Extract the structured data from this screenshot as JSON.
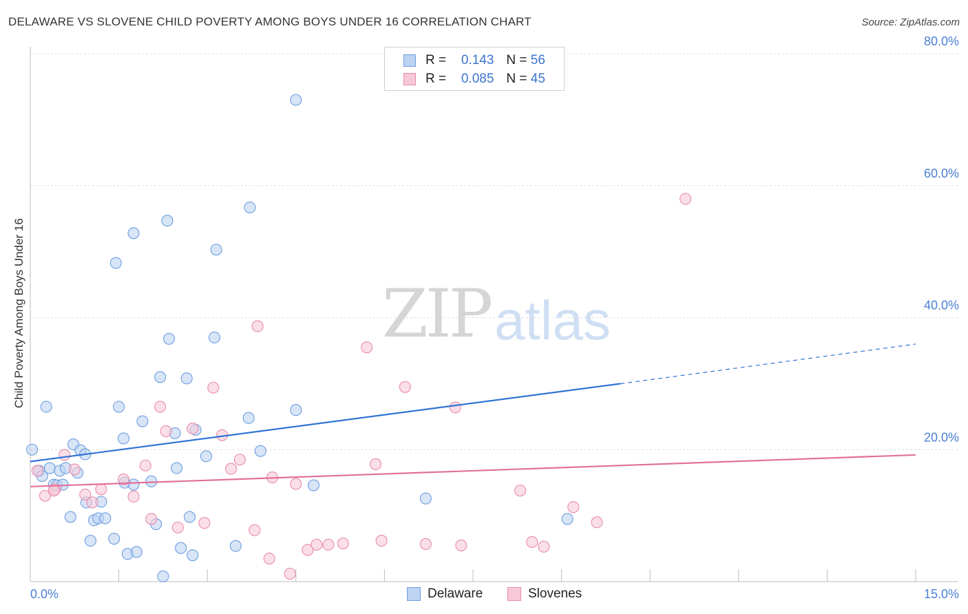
{
  "title": "DELAWARE VS SLOVENE CHILD POVERTY AMONG BOYS UNDER 16 CORRELATION CHART",
  "source": "Source: ZipAtlas.com",
  "watermark": {
    "zip": "ZIP",
    "atlas": "atlas"
  },
  "legend": {
    "rows": [
      {
        "r_label": "R =",
        "r_value": "0.143",
        "n_label": "N =",
        "n_value": "56"
      },
      {
        "r_label": "R =",
        "r_value": "0.085",
        "n_label": "N =",
        "n_value": "45"
      }
    ]
  },
  "bottom_legend": [
    "Delaware",
    "Slovenes"
  ],
  "colors": {
    "delaware_fill": "#bcd3f2",
    "delaware_edge": "#6d9de0",
    "delaware_line": "#2f73d6",
    "slovenes_fill": "#f7c9d8",
    "slovenes_edge": "#e98aab",
    "slovenes_line": "#e2709a",
    "tick": "#4a7fd4",
    "grid": "#dddddd"
  },
  "chart_data": {
    "type": "scatter",
    "title": "DELAWARE VS SLOVENE CHILD POVERTY AMONG BOYS UNDER 16 CORRELATION CHART",
    "xlabel": "",
    "ylabel": "Child Poverty Among Boys Under 16",
    "xlim": [
      0,
      15
    ],
    "ylim": [
      0,
      80
    ],
    "x_tick_labels": [
      "0.0%",
      "15.0%"
    ],
    "y_tick_labels": [
      "20.0%",
      "40.0%",
      "60.0%",
      "80.0%"
    ],
    "y_ticks": [
      20,
      40,
      60,
      80
    ],
    "grid": true,
    "series": [
      {
        "name": "Delaware",
        "r": 0.143,
        "n": 56,
        "trend": {
          "x0": 0,
          "y0": 18.2,
          "x1": 10.0,
          "y1": 30.0,
          "dashed_to_x": 15.0,
          "dashed_to_y": 36.0
        },
        "points": [
          [
            0.03,
            20.0
          ],
          [
            0.15,
            16.8
          ],
          [
            0.2,
            16.0
          ],
          [
            0.27,
            26.5
          ],
          [
            0.33,
            17.2
          ],
          [
            0.4,
            14.7
          ],
          [
            0.45,
            14.6
          ],
          [
            0.5,
            16.8
          ],
          [
            0.6,
            17.2
          ],
          [
            0.68,
            9.8
          ],
          [
            0.73,
            20.8
          ],
          [
            0.8,
            16.5
          ],
          [
            0.85,
            19.9
          ],
          [
            0.93,
            19.3
          ],
          [
            0.95,
            12.0
          ],
          [
            1.02,
            6.2
          ],
          [
            1.08,
            9.3
          ],
          [
            1.15,
            9.6
          ],
          [
            1.2,
            12.1
          ],
          [
            1.27,
            9.6
          ],
          [
            1.42,
            6.5
          ],
          [
            1.45,
            48.3
          ],
          [
            1.5,
            26.5
          ],
          [
            1.58,
            21.7
          ],
          [
            1.6,
            15.0
          ],
          [
            1.65,
            4.2
          ],
          [
            1.75,
            52.8
          ],
          [
            1.8,
            4.5
          ],
          [
            1.9,
            24.3
          ],
          [
            2.05,
            15.2
          ],
          [
            2.13,
            8.7
          ],
          [
            2.2,
            31.0
          ],
          [
            2.25,
            0.8
          ],
          [
            2.32,
            54.7
          ],
          [
            2.35,
            36.8
          ],
          [
            2.45,
            22.5
          ],
          [
            2.48,
            17.2
          ],
          [
            2.55,
            5.1
          ],
          [
            2.65,
            30.8
          ],
          [
            2.7,
            9.8
          ],
          [
            2.75,
            4.0
          ],
          [
            2.8,
            23.0
          ],
          [
            2.98,
            19.0
          ],
          [
            3.12,
            37.0
          ],
          [
            3.15,
            50.3
          ],
          [
            3.48,
            5.4
          ],
          [
            3.7,
            24.8
          ],
          [
            3.72,
            56.7
          ],
          [
            3.9,
            19.8
          ],
          [
            4.5,
            26.0
          ],
          [
            4.5,
            73.0
          ],
          [
            4.8,
            14.6
          ],
          [
            6.7,
            12.6
          ],
          [
            9.1,
            9.5
          ],
          [
            0.55,
            14.7
          ],
          [
            1.75,
            14.7
          ]
        ]
      },
      {
        "name": "Slovenes",
        "r": 0.085,
        "n": 45,
        "trend": {
          "x0": 0,
          "y0": 14.4,
          "x1": 15.0,
          "y1": 19.2
        },
        "points": [
          [
            0.12,
            16.8
          ],
          [
            0.25,
            13.0
          ],
          [
            0.42,
            14.0
          ],
          [
            0.58,
            19.2
          ],
          [
            0.75,
            17.0
          ],
          [
            0.93,
            13.2
          ],
          [
            1.05,
            12.0
          ],
          [
            1.2,
            14.0
          ],
          [
            1.58,
            15.5
          ],
          [
            1.75,
            12.9
          ],
          [
            1.95,
            17.6
          ],
          [
            2.05,
            9.5
          ],
          [
            2.2,
            26.5
          ],
          [
            2.3,
            22.8
          ],
          [
            2.5,
            8.2
          ],
          [
            2.75,
            23.2
          ],
          [
            2.95,
            8.9
          ],
          [
            3.1,
            29.4
          ],
          [
            3.25,
            22.2
          ],
          [
            3.4,
            17.1
          ],
          [
            3.55,
            18.5
          ],
          [
            3.8,
            7.8
          ],
          [
            3.85,
            38.7
          ],
          [
            4.05,
            3.5
          ],
          [
            4.1,
            15.8
          ],
          [
            4.4,
            1.2
          ],
          [
            4.5,
            14.8
          ],
          [
            4.7,
            4.8
          ],
          [
            4.85,
            5.6
          ],
          [
            5.05,
            5.6
          ],
          [
            5.3,
            5.8
          ],
          [
            5.7,
            35.5
          ],
          [
            5.85,
            17.8
          ],
          [
            5.95,
            6.2
          ],
          [
            6.35,
            29.5
          ],
          [
            6.7,
            5.7
          ],
          [
            7.2,
            26.4
          ],
          [
            7.3,
            5.5
          ],
          [
            8.3,
            13.8
          ],
          [
            8.5,
            6.0
          ],
          [
            8.7,
            5.3
          ],
          [
            9.2,
            11.3
          ],
          [
            9.6,
            9.0
          ],
          [
            11.1,
            58.0
          ],
          [
            0.4,
            13.8
          ]
        ]
      }
    ]
  }
}
